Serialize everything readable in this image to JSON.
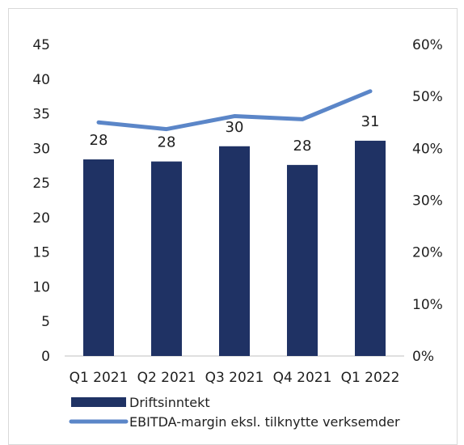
{
  "chart_data": {
    "type": "bar",
    "categories": [
      "Q1 2021",
      "Q2 2021",
      "Q3 2021",
      "Q4 2021",
      "Q1 2022"
    ],
    "series": [
      {
        "name": "Driftsinntekt",
        "type": "bar",
        "axis": "left",
        "color": "#1f3264",
        "values": [
          28.4,
          28.1,
          30.3,
          27.6,
          31.1
        ],
        "data_labels": [
          "28",
          "28",
          "30",
          "28",
          "31"
        ]
      },
      {
        "name": "EBITDA-margin eksl. tilknytte verksemder",
        "type": "line",
        "axis": "right",
        "color": "#5b86c8",
        "values": [
          0.45,
          0.437,
          0.462,
          0.456,
          0.51
        ]
      }
    ],
    "y_left": {
      "range": [
        0,
        45
      ],
      "tick_labels": [
        "0",
        "5",
        "10",
        "15",
        "20",
        "25",
        "30",
        "35",
        "40",
        "45"
      ]
    },
    "y_right": {
      "range": [
        0,
        0.6
      ],
      "tick_labels": [
        "0%",
        "10%",
        "20%",
        "30%",
        "40%",
        "50%",
        "60%"
      ]
    },
    "grid": false,
    "legend_position": "bottom-left",
    "title": "",
    "xlabel": "",
    "ylabel": ""
  }
}
